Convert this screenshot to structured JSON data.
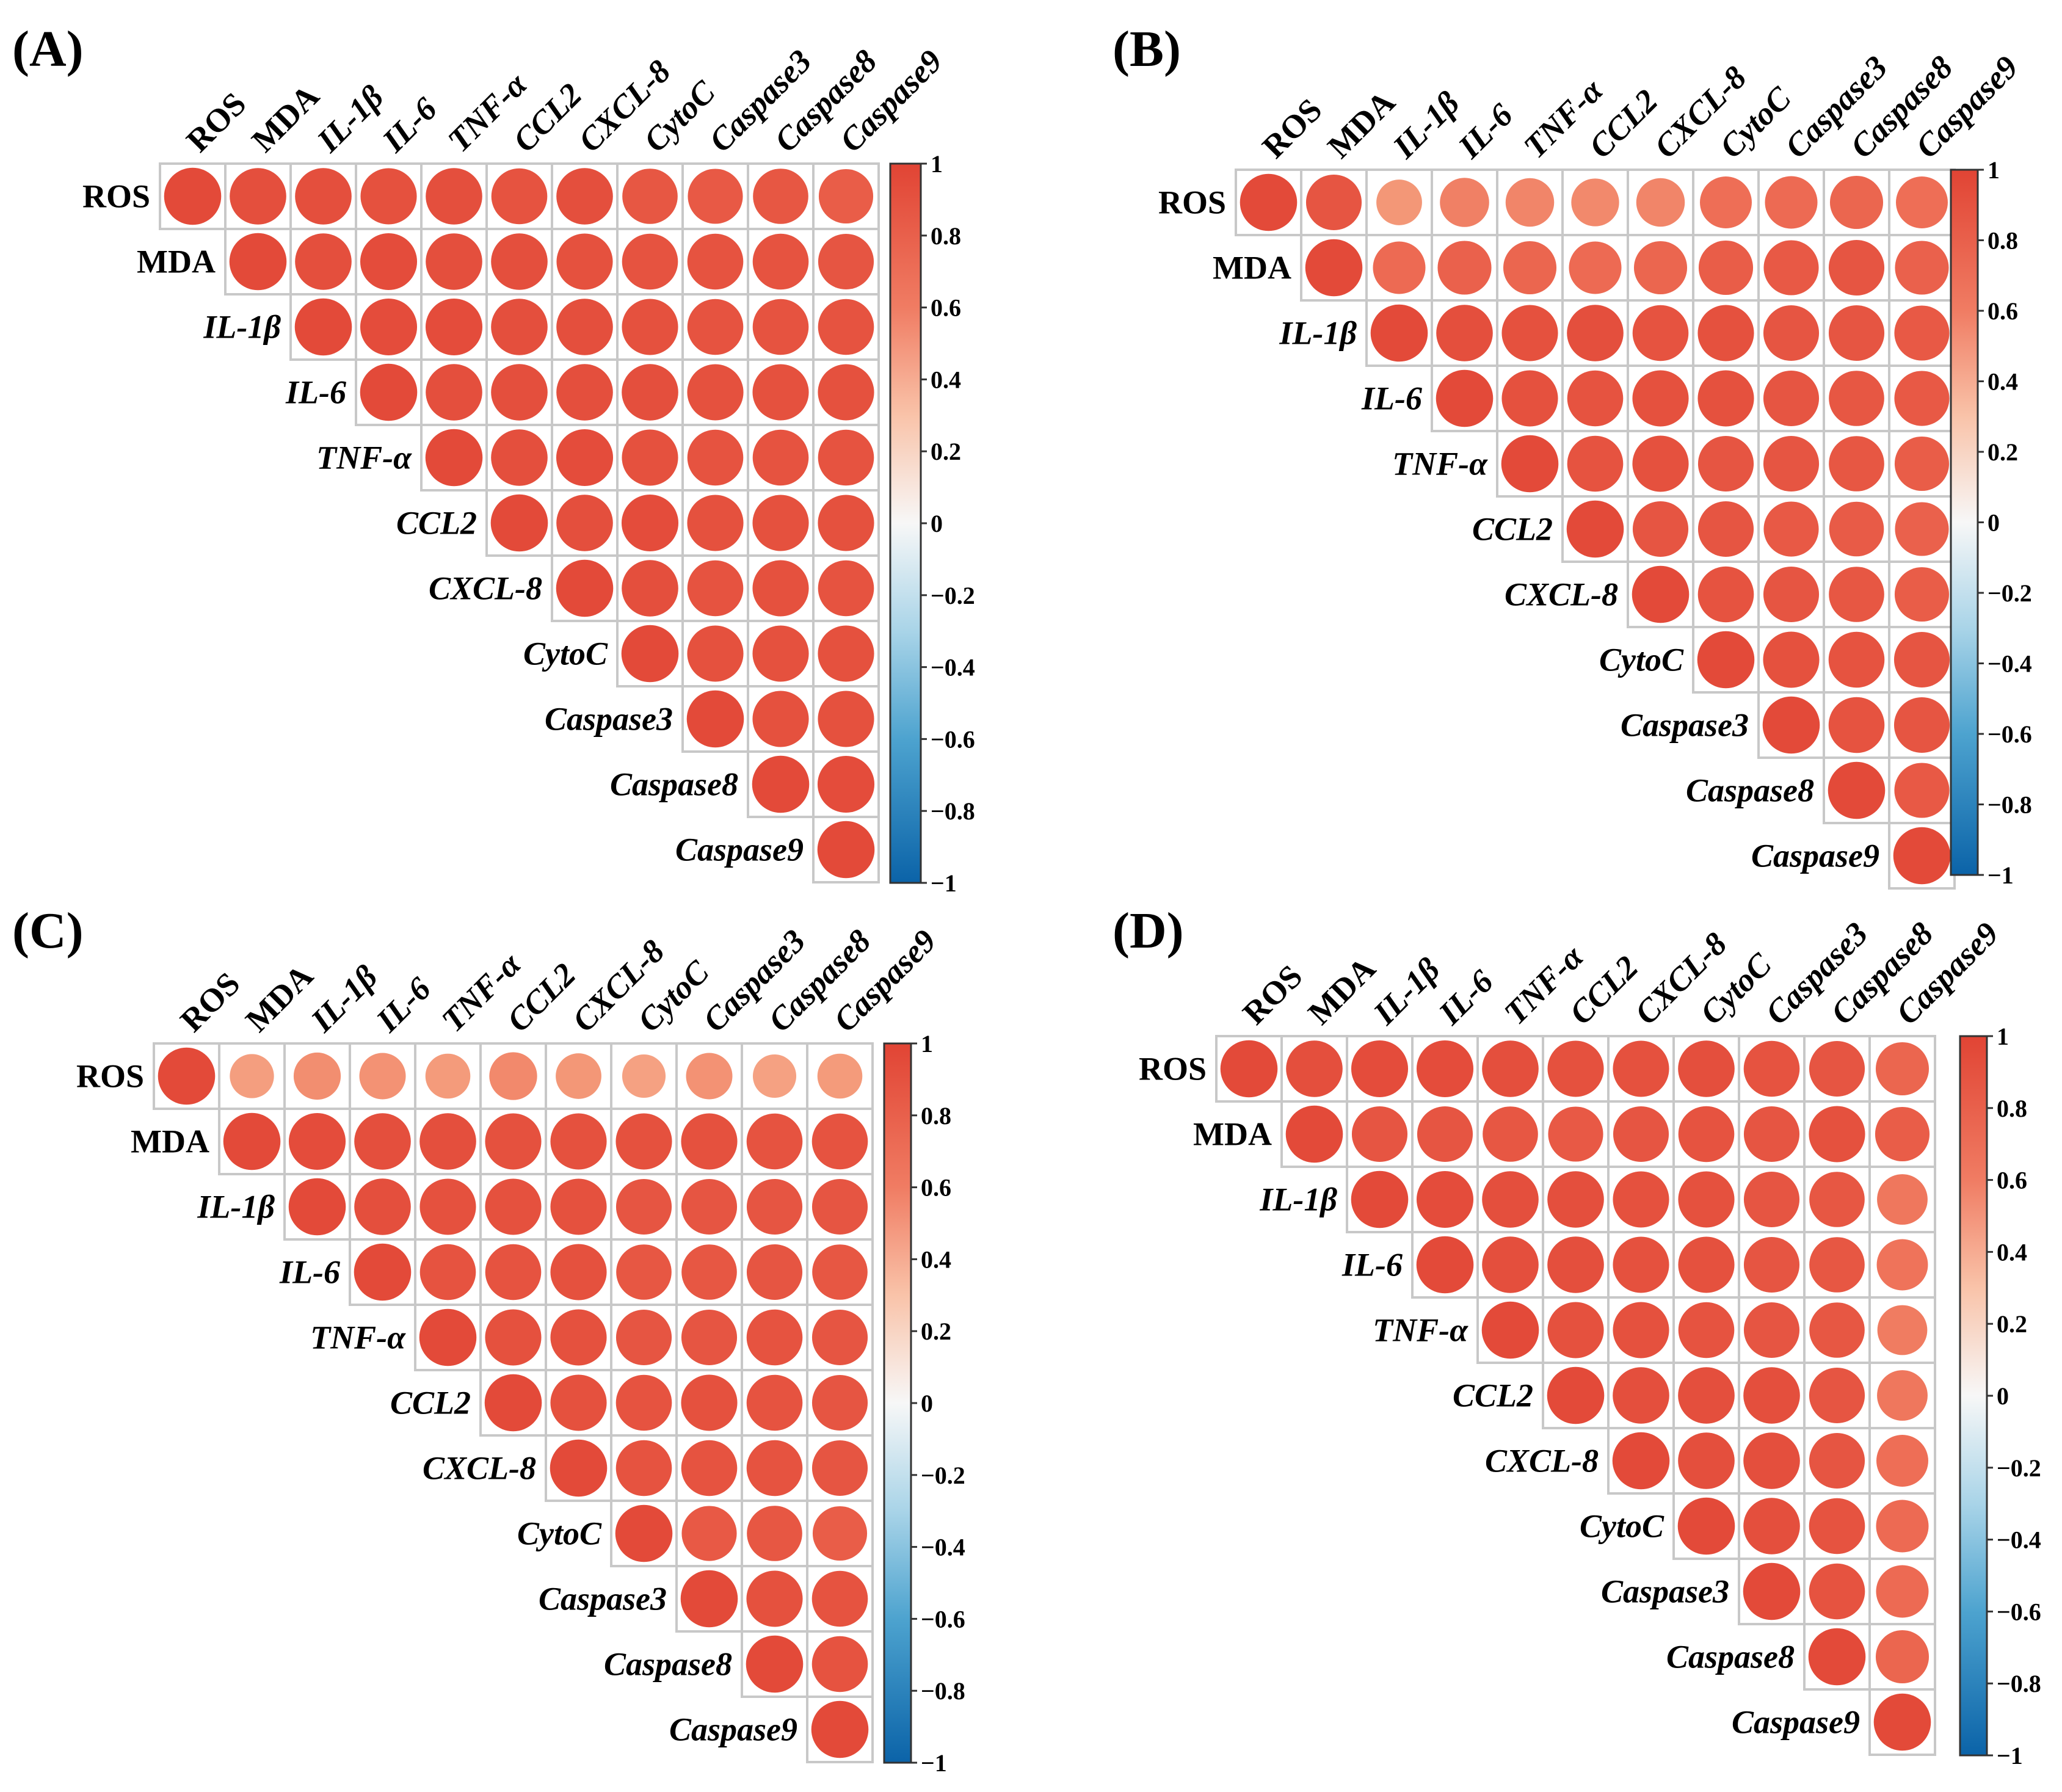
{
  "chart_data": [
    {
      "type": "heatmap",
      "panel_label": "(A)",
      "variables": [
        "ROS",
        "MDA",
        "IL-1β",
        "IL-6",
        "TNF-α",
        "CCL2",
        "CXCL-8",
        "CytoC",
        "Caspase3",
        "Caspase8",
        "Caspase9"
      ],
      "italic_variables": [
        "IL-1β",
        "IL-6",
        "TNF-α",
        "CCL2",
        "CXCL-8",
        "CytoC",
        "Caspase3",
        "Caspase8",
        "Caspase9"
      ],
      "matrix": [
        [
          0.97,
          0.95,
          0.95,
          0.94,
          0.95,
          0.93,
          0.95,
          0.91,
          0.9,
          0.91,
          0.88
        ],
        [
          null,
          0.97,
          0.95,
          0.96,
          0.95,
          0.95,
          0.94,
          0.93,
          0.93,
          0.93,
          0.92
        ],
        [
          null,
          null,
          0.97,
          0.96,
          0.96,
          0.95,
          0.95,
          0.94,
          0.93,
          0.93,
          0.93
        ],
        [
          null,
          null,
          null,
          0.97,
          0.95,
          0.95,
          0.95,
          0.95,
          0.94,
          0.94,
          0.94
        ],
        [
          null,
          null,
          null,
          null,
          0.97,
          0.95,
          0.96,
          0.94,
          0.93,
          0.93,
          0.93
        ],
        [
          null,
          null,
          null,
          null,
          null,
          0.97,
          0.95,
          0.96,
          0.94,
          0.94,
          0.94
        ],
        [
          null,
          null,
          null,
          null,
          null,
          null,
          0.97,
          0.95,
          0.93,
          0.94,
          0.93
        ],
        [
          null,
          null,
          null,
          null,
          null,
          null,
          null,
          0.97,
          0.94,
          0.94,
          0.94
        ],
        [
          null,
          null,
          null,
          null,
          null,
          null,
          null,
          null,
          0.97,
          0.94,
          0.94
        ],
        [
          null,
          null,
          null,
          null,
          null,
          null,
          null,
          null,
          null,
          0.97,
          0.96
        ],
        [
          null,
          null,
          null,
          null,
          null,
          null,
          null,
          null,
          null,
          null,
          0.97
        ]
      ],
      "colorbar_ticks": [
        "1",
        "0.8",
        "0.6",
        "0.4",
        "0.2",
        "0",
        "−0.2",
        "−0.4",
        "−0.6",
        "−0.8",
        "−1"
      ],
      "colorbar_range": [
        -1,
        1
      ]
    },
    {
      "type": "heatmap",
      "panel_label": "(B)",
      "variables": [
        "ROS",
        "MDA",
        "IL-1β",
        "IL-6",
        "TNF-α",
        "CCL2",
        "CXCL-8",
        "CytoC",
        "Caspase3",
        "Caspase8",
        "Caspase9"
      ],
      "italic_variables": [
        "IL-1β",
        "IL-6",
        "TNF-α",
        "CCL2",
        "CXCL-8",
        "CytoC",
        "Caspase3",
        "Caspase8",
        "Caspase9"
      ],
      "matrix": [
        [
          0.97,
          0.92,
          0.62,
          0.72,
          0.7,
          0.68,
          0.7,
          0.8,
          0.82,
          0.84,
          0.8
        ],
        [
          null,
          0.97,
          0.82,
          0.86,
          0.84,
          0.82,
          0.84,
          0.88,
          0.9,
          0.92,
          0.86
        ],
        [
          null,
          null,
          0.97,
          0.95,
          0.94,
          0.95,
          0.93,
          0.94,
          0.92,
          0.92,
          0.9
        ],
        [
          null,
          null,
          null,
          0.97,
          0.94,
          0.93,
          0.94,
          0.94,
          0.92,
          0.91,
          0.9
        ],
        [
          null,
          null,
          null,
          null,
          0.97,
          0.93,
          0.94,
          0.92,
          0.92,
          0.91,
          0.88
        ],
        [
          null,
          null,
          null,
          null,
          null,
          0.97,
          0.92,
          0.92,
          0.9,
          0.89,
          0.86
        ],
        [
          null,
          null,
          null,
          null,
          null,
          null,
          0.97,
          0.93,
          0.92,
          0.91,
          0.88
        ],
        [
          null,
          null,
          null,
          null,
          null,
          null,
          null,
          0.97,
          0.94,
          0.93,
          0.92
        ],
        [
          null,
          null,
          null,
          null,
          null,
          null,
          null,
          null,
          0.97,
          0.93,
          0.92
        ],
        [
          null,
          null,
          null,
          null,
          null,
          null,
          null,
          null,
          null,
          0.97,
          0.9
        ],
        [
          null,
          null,
          null,
          null,
          null,
          null,
          null,
          null,
          null,
          null,
          0.97
        ]
      ],
      "colorbar_ticks": [
        "1",
        "0.8",
        "0.6",
        "0.4",
        "0.2",
        "0",
        "−0.2",
        "−0.4",
        "−0.6",
        "−0.8",
        "−1"
      ],
      "colorbar_range": [
        -1,
        1
      ]
    },
    {
      "type": "heatmap",
      "panel_label": "(C)",
      "variables": [
        "ROS",
        "MDA",
        "IL-1β",
        "IL-6",
        "TNF-α",
        "CCL2",
        "CXCL-8",
        "CytoC",
        "Caspase3",
        "Caspase8",
        "Caspase9"
      ],
      "italic_variables": [
        "IL-1β",
        "IL-6",
        "TNF-α",
        "CCL2",
        "CXCL-8",
        "CytoC",
        "Caspase3",
        "Caspase8",
        "Caspase9"
      ],
      "matrix": [
        [
          0.97,
          0.58,
          0.66,
          0.64,
          0.6,
          0.68,
          0.62,
          0.56,
          0.64,
          0.56,
          0.6
        ],
        [
          null,
          0.97,
          0.96,
          0.95,
          0.95,
          0.94,
          0.94,
          0.94,
          0.94,
          0.93,
          0.93
        ],
        [
          null,
          null,
          0.97,
          0.95,
          0.94,
          0.94,
          0.94,
          0.92,
          0.92,
          0.92,
          0.92
        ],
        [
          null,
          null,
          null,
          0.97,
          0.93,
          0.93,
          0.94,
          0.91,
          0.91,
          0.92,
          0.91
        ],
        [
          null,
          null,
          null,
          null,
          0.97,
          0.94,
          0.94,
          0.92,
          0.92,
          0.93,
          0.92
        ],
        [
          null,
          null,
          null,
          null,
          null,
          0.97,
          0.94,
          0.93,
          0.94,
          0.93,
          0.92
        ],
        [
          null,
          null,
          null,
          null,
          null,
          null,
          0.97,
          0.93,
          0.93,
          0.93,
          0.92
        ],
        [
          null,
          null,
          null,
          null,
          null,
          null,
          null,
          0.97,
          0.9,
          0.91,
          0.88
        ],
        [
          null,
          null,
          null,
          null,
          null,
          null,
          null,
          null,
          0.97,
          0.94,
          0.93
        ],
        [
          null,
          null,
          null,
          null,
          null,
          null,
          null,
          null,
          null,
          0.97,
          0.93
        ],
        [
          null,
          null,
          null,
          null,
          null,
          null,
          null,
          null,
          null,
          null,
          0.97
        ]
      ],
      "colorbar_ticks": [
        "1",
        "0.8",
        "0.6",
        "0.4",
        "0.2",
        "0",
        "−0.2",
        "−0.4",
        "−0.6",
        "−0.8",
        "−1"
      ],
      "colorbar_range": [
        -1,
        1
      ]
    },
    {
      "type": "heatmap",
      "panel_label": "(D)",
      "variables": [
        "ROS",
        "MDA",
        "IL-1β",
        "IL-6",
        "TNF-α",
        "CCL2",
        "CXCL-8",
        "CytoC",
        "Caspase3",
        "Caspase8",
        "Caspase9"
      ],
      "italic_variables": [
        "IL-1β",
        "IL-6",
        "TNF-α",
        "CCL2",
        "CXCL-8",
        "CytoC",
        "Caspase3",
        "Caspase8",
        "Caspase9"
      ],
      "matrix": [
        [
          0.97,
          0.95,
          0.96,
          0.96,
          0.95,
          0.94,
          0.94,
          0.95,
          0.93,
          0.92,
          0.84
        ],
        [
          null,
          0.97,
          0.92,
          0.92,
          0.91,
          0.9,
          0.92,
          0.93,
          0.92,
          0.94,
          0.88
        ],
        [
          null,
          null,
          0.97,
          0.96,
          0.95,
          0.95,
          0.94,
          0.94,
          0.92,
          0.91,
          0.76
        ],
        [
          null,
          null,
          null,
          0.97,
          0.95,
          0.95,
          0.94,
          0.94,
          0.92,
          0.91,
          0.78
        ],
        [
          null,
          null,
          null,
          null,
          0.97,
          0.94,
          0.94,
          0.93,
          0.92,
          0.91,
          0.74
        ],
        [
          null,
          null,
          null,
          null,
          null,
          0.97,
          0.95,
          0.95,
          0.95,
          0.92,
          0.76
        ],
        [
          null,
          null,
          null,
          null,
          null,
          null,
          0.97,
          0.95,
          0.95,
          0.92,
          0.8
        ],
        [
          null,
          null,
          null,
          null,
          null,
          null,
          null,
          0.97,
          0.95,
          0.93,
          0.82
        ],
        [
          null,
          null,
          null,
          null,
          null,
          null,
          null,
          null,
          0.97,
          0.93,
          0.82
        ],
        [
          null,
          null,
          null,
          null,
          null,
          null,
          null,
          null,
          null,
          0.97,
          0.84
        ],
        [
          null,
          null,
          null,
          null,
          null,
          null,
          null,
          null,
          null,
          null,
          0.97
        ]
      ],
      "colorbar_ticks": [
        "1",
        "0.8",
        "0.6",
        "0.4",
        "0.2",
        "0",
        "−0.2",
        "−0.4",
        "−0.6",
        "−0.8",
        "−1"
      ],
      "colorbar_range": [
        -1,
        1
      ]
    }
  ]
}
